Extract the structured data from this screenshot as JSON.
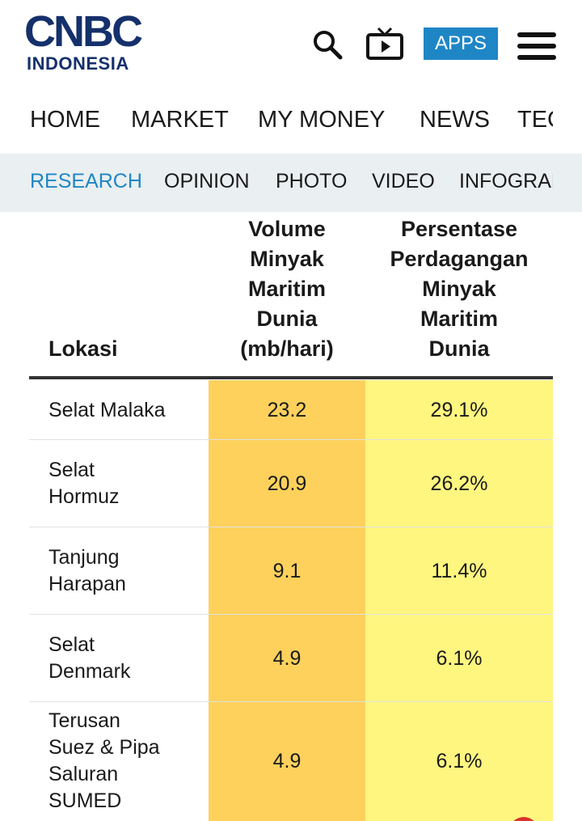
{
  "header": {
    "logo_main": "CNBC",
    "logo_sub": "INDONESIA",
    "apps_button": "APPS"
  },
  "nav": [
    "HOME",
    "MARKET",
    "MY MONEY",
    "NEWS",
    "TECH"
  ],
  "subnav": [
    "RESEARCH",
    "OPINION",
    "PHOTO",
    "VIDEO",
    "INFOGRAFIS"
  ],
  "table": {
    "columns": [
      [
        "Lokasi"
      ],
      [
        "Volume",
        "Minyak",
        "Maritim",
        "Dunia",
        "(mb/hari)"
      ],
      [
        "Persentase",
        "Perdagangan",
        "Minyak",
        "Maritim",
        "Dunia"
      ]
    ],
    "rows": [
      [
        [
          "Selat Malaka"
        ],
        "23.2",
        "29.1%"
      ],
      [
        [
          "Selat",
          "Hormuz"
        ],
        "20.9",
        "26.2%"
      ],
      [
        [
          "Tanjung",
          "Harapan"
        ],
        "9.1",
        "11.4%"
      ],
      [
        [
          "Selat",
          "Denmark"
        ],
        "4.9",
        "6.1%"
      ],
      [
        [
          "Terusan",
          "Suez & Pipa",
          "Saluran",
          "SUMED"
        ],
        "4.9",
        "6.1%"
      ]
    ]
  }
}
